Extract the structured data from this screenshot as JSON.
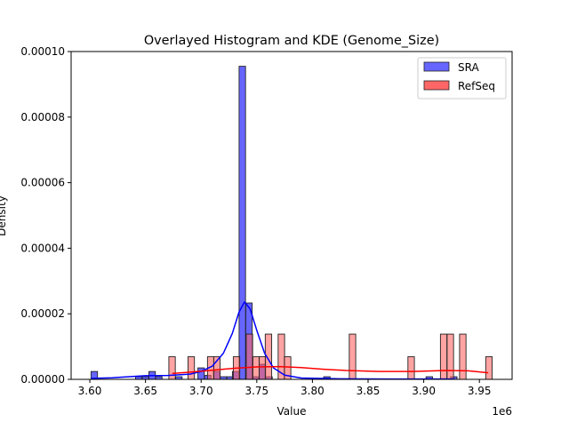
{
  "chart_data": {
    "type": "histogram+kde",
    "title": "Overlayed Histogram and KDE (Genome_Size)",
    "xlabel": "Value",
    "ylabel": "Density",
    "x_offset_label": "1e6",
    "xlim": [
      3.5832,
      3.9794
    ],
    "ylim": [
      0,
      0.0001
    ],
    "x_scale_factor": 1000000,
    "x_ticks": [
      3.6,
      3.65,
      3.7,
      3.75,
      3.8,
      3.85,
      3.9,
      3.95
    ],
    "x_tick_labels": [
      "3.60",
      "3.65",
      "3.70",
      "3.75",
      "3.80",
      "3.85",
      "3.90",
      "3.95"
    ],
    "y_ticks": [
      0,
      2e-05,
      4e-05,
      6e-05,
      8e-05,
      0.0001
    ],
    "y_tick_labels": [
      "0.00000",
      "0.00002",
      "0.00004",
      "0.00006",
      "0.00008",
      "0.00010"
    ],
    "bin_width": 0.0058,
    "grid": false,
    "legend_position": "top-right",
    "series": [
      {
        "name": "SRA",
        "color": "#0000ff",
        "bar_color": "#6666ff",
        "bins": [
          [
            3.604,
            2.4
          ],
          [
            3.644,
            0.8
          ],
          [
            3.65,
            0.8
          ],
          [
            3.656,
            2.4
          ],
          [
            3.662,
            0.8
          ],
          [
            3.68,
            0.8
          ],
          [
            3.7,
            3.5
          ],
          [
            3.706,
            1.2
          ],
          [
            3.714,
            2.4
          ],
          [
            3.72,
            0.8
          ],
          [
            3.726,
            0.8
          ],
          [
            3.731,
            2.4
          ],
          [
            3.737,
            95.5
          ],
          [
            3.743,
            23.3
          ],
          [
            3.749,
            0.8
          ],
          [
            3.755,
            4.6
          ],
          [
            3.761,
            0.8
          ],
          [
            3.813,
            0.8
          ],
          [
            3.905,
            0.8
          ],
          [
            3.927,
            0.8
          ]
        ],
        "kde": [
          [
            3.601,
            0.3
          ],
          [
            3.62,
            0.5
          ],
          [
            3.65,
            1.1
          ],
          [
            3.67,
            1.2
          ],
          [
            3.69,
            1.6
          ],
          [
            3.7,
            2.4
          ],
          [
            3.71,
            4.0
          ],
          [
            3.72,
            8.0
          ],
          [
            3.728,
            14.0
          ],
          [
            3.734,
            20.5
          ],
          [
            3.739,
            23.6
          ],
          [
            3.744,
            21.5
          ],
          [
            3.75,
            15.0
          ],
          [
            3.757,
            8.0
          ],
          [
            3.765,
            3.5
          ],
          [
            3.775,
            1.3
          ],
          [
            3.79,
            0.4
          ],
          [
            3.82,
            0.2
          ],
          [
            3.87,
            0.1
          ],
          [
            3.927,
            0.1
          ]
        ]
      },
      {
        "name": "RefSeq",
        "color": "#ff0000",
        "bar_color": "#ff6666",
        "bins": [
          [
            3.6739,
            6.9
          ],
          [
            3.6911,
            6.9
          ],
          [
            3.7086,
            6.9
          ],
          [
            3.7142,
            6.9
          ],
          [
            3.7318,
            6.9
          ],
          [
            3.7434,
            13.8
          ],
          [
            3.7494,
            6.9
          ],
          [
            3.755,
            6.9
          ],
          [
            3.7605,
            13.8
          ],
          [
            3.7721,
            13.8
          ],
          [
            3.7777,
            6.9
          ],
          [
            3.836,
            13.8
          ],
          [
            3.8887,
            6.9
          ],
          [
            3.9179,
            13.8
          ],
          [
            3.9239,
            13.8
          ],
          [
            3.9351,
            13.8
          ],
          [
            3.9586,
            6.9
          ]
        ],
        "kde": [
          [
            3.674,
            1.8
          ],
          [
            3.69,
            2.2
          ],
          [
            3.71,
            2.8
          ],
          [
            3.73,
            3.4
          ],
          [
            3.75,
            3.8
          ],
          [
            3.77,
            3.9
          ],
          [
            3.79,
            3.6
          ],
          [
            3.81,
            3.1
          ],
          [
            3.83,
            2.7
          ],
          [
            3.86,
            2.4
          ],
          [
            3.89,
            2.4
          ],
          [
            3.92,
            2.7
          ],
          [
            3.94,
            2.6
          ],
          [
            3.958,
            2.0
          ]
        ]
      }
    ]
  }
}
